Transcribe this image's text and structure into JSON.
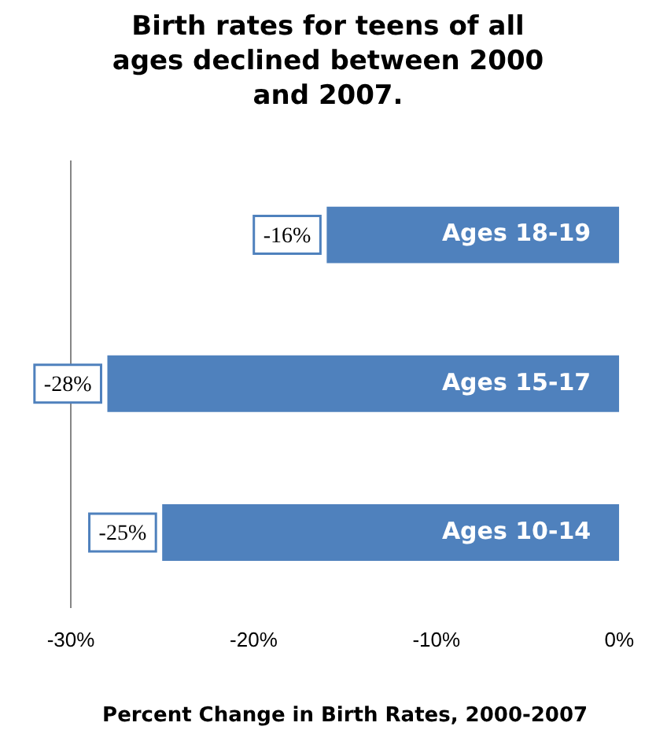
{
  "chart_data": {
    "type": "bar",
    "orientation": "horizontal",
    "title": "Birth rates for teens of all ages declined between 2000 and 2007.",
    "xlabel": "Percent Change in Birth Rates, 2000-2007",
    "categories": [
      "Ages 18-19",
      "Ages 15-17",
      "Ages 10-14"
    ],
    "values": [
      -16,
      -28,
      -25
    ],
    "color": "#4f81bd",
    "value_labels": [
      "-16%",
      "-28%",
      "-25%"
    ],
    "xlim": [
      -30,
      0
    ],
    "xticks": [
      {
        "value": -30,
        "label": "-30%"
      },
      {
        "value": -20,
        "label": "-20%"
      },
      {
        "value": -10,
        "label": "-10%"
      },
      {
        "value": 0,
        "label": "0%"
      }
    ],
    "grid": false,
    "legend": false
  }
}
